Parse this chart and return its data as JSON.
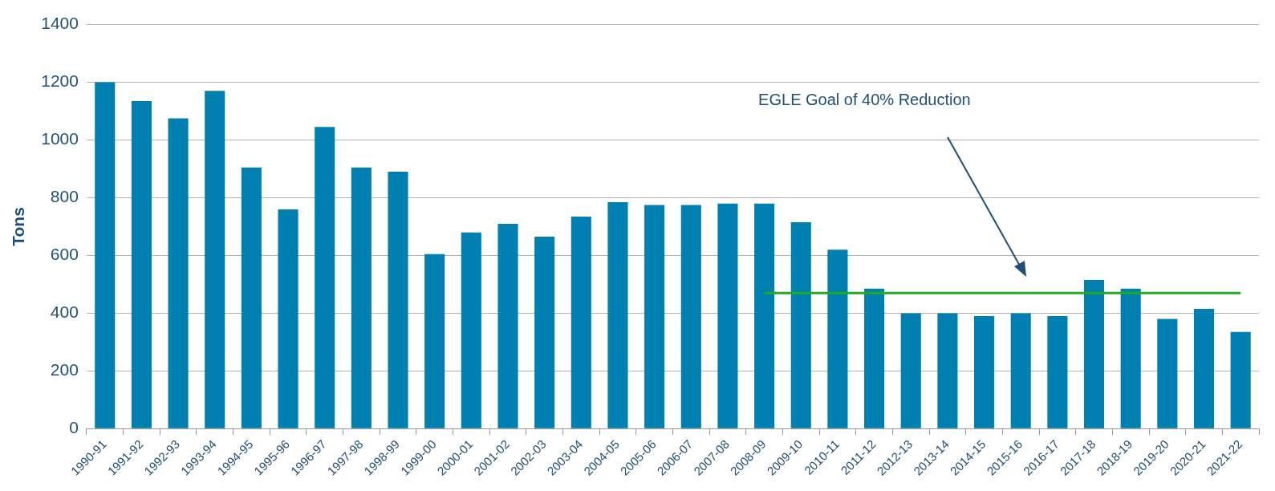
{
  "chart_data": {
    "type": "bar",
    "ylabel": "Tons",
    "categories": [
      "1990-91",
      "1991-92",
      "1992-93",
      "1993-94",
      "1994-95",
      "1995-96",
      "1996-97",
      "1997-98",
      "1998-99",
      "1999-00",
      "2000-01",
      "2001-02",
      "2002-03",
      "2003-04",
      "2004-05",
      "2005-06",
      "2006-07",
      "2007-08",
      "2008-09",
      "2009-10",
      "2010-11",
      "2011-12",
      "2012-13",
      "2013-14",
      "2014-15",
      "2015-16",
      "2016-17",
      "2017-18",
      "2018-19",
      "2019-20",
      "2020-21",
      "2021-22"
    ],
    "series": [
      {
        "color": "#0080b0",
        "values": [
          1200,
          1135,
          1075,
          1170,
          905,
          760,
          1045,
          905,
          890,
          605,
          680,
          710,
          665,
          735,
          785,
          775,
          775,
          780,
          780,
          715,
          620,
          485,
          400,
          400,
          390,
          400,
          390,
          515,
          485,
          380,
          415,
          335
        ]
      },
      {
        "type": "line",
        "color": "#22aa22",
        "values": [
          null,
          null,
          null,
          null,
          null,
          null,
          null,
          null,
          null,
          null,
          null,
          null,
          null,
          null,
          null,
          null,
          null,
          null,
          470,
          470,
          470,
          470,
          470,
          470,
          470,
          470,
          470,
          470,
          470,
          470,
          470,
          470
        ]
      }
    ],
    "annotations": [
      "EGLE Goal of 40% Reduction"
    ],
    "ylim": [
      0,
      1400
    ],
    "yticks": [
      0,
      200,
      400,
      600,
      800,
      1000,
      1200,
      1400
    ],
    "grid": "y",
    "legend": false
  }
}
